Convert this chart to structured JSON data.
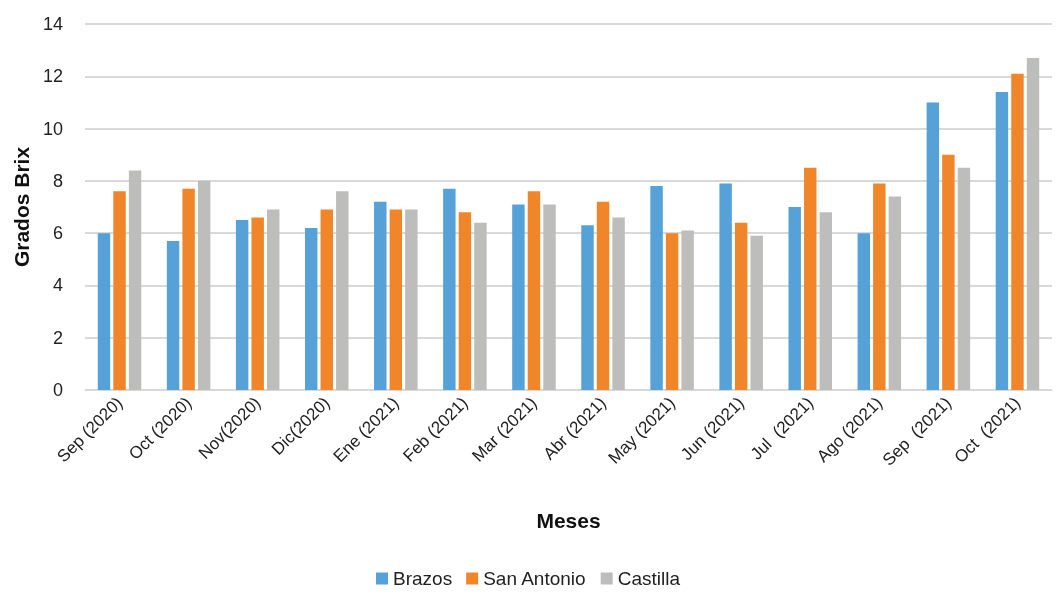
{
  "chart_data": {
    "type": "bar",
    "xlabel": "Meses",
    "ylabel": "Grados Brix",
    "categories": [
      "Sep (2020)",
      "Oct (2020)",
      "Nov(2020)",
      "Dic(2020)",
      "Ene (2021)",
      "Feb (2021)",
      "Mar (2021)",
      "Abr (2021)",
      "May (2021)",
      "Jun (2021)",
      "Jul  (2021)",
      "Ago (2021)",
      "Sep  (2021)",
      "Oct  (2021)"
    ],
    "series": [
      {
        "name": "Brazos",
        "color": "#55a1d8",
        "values": [
          6.0,
          5.7,
          6.5,
          6.2,
          7.2,
          7.7,
          7.1,
          6.3,
          7.8,
          7.9,
          7.0,
          6.0,
          11.0,
          11.4
        ]
      },
      {
        "name": "San Antonio",
        "color": "#f08529",
        "values": [
          7.6,
          7.7,
          6.6,
          6.9,
          6.9,
          6.8,
          7.6,
          7.2,
          6.0,
          6.4,
          8.5,
          7.9,
          9.0,
          12.1
        ]
      },
      {
        "name": "Castilla",
        "color": "#bdbdbc",
        "values": [
          8.4,
          8.0,
          6.9,
          7.6,
          6.9,
          6.4,
          7.1,
          6.6,
          6.1,
          5.9,
          6.8,
          7.4,
          8.5,
          12.7
        ]
      }
    ],
    "ylim": [
      0,
      14
    ],
    "yticks": [
      0,
      2,
      4,
      6,
      8,
      10,
      12,
      14
    ],
    "grid": "y",
    "legend": "bottom"
  }
}
